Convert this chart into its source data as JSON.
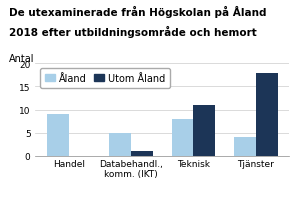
{
  "title_line1": "De utexaminerade från Högskolan på Åland",
  "title_line2": "2018 efter utbildningsområde och hemort",
  "ylabel": "Antal",
  "categories": [
    "Handel",
    "Databehandl.,\nkomm. (IKT)",
    "Teknisk",
    "Tjänster"
  ],
  "aland_values": [
    9,
    5,
    8,
    4
  ],
  "utom_aland_values": [
    0,
    1,
    11,
    18
  ],
  "aland_color": "#a8cfe8",
  "utom_aland_color": "#1c3557",
  "ylim": [
    0,
    20
  ],
  "yticks": [
    0,
    5,
    10,
    15,
    20
  ],
  "legend_labels": [
    "Åland",
    "Utom Åland"
  ],
  "bar_width": 0.35,
  "title_fontsize": 7.5,
  "ylabel_fontsize": 7,
  "legend_fontsize": 7,
  "tick_fontsize": 6.5
}
